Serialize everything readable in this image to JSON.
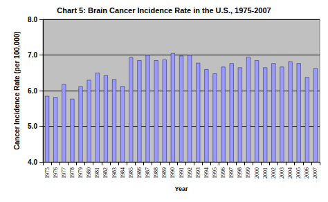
{
  "chart_data": {
    "type": "bar",
    "title": "Chart 5: Brain Cancer Incidence Rate in the U.S., 1975-2007",
    "x_label": "Year",
    "y_label": "Cancer Incidence Rate (per 100,000)",
    "categories": [
      "1975",
      "1976",
      "1977",
      "1978",
      "1979",
      "1980",
      "1981",
      "1982",
      "1983",
      "1984",
      "1985",
      "1986",
      "1987",
      "1988",
      "1989",
      "1990",
      "1991",
      "1992",
      "1993",
      "1994",
      "1995",
      "1996",
      "1997",
      "1998",
      "1999",
      "2000",
      "2001",
      "2002",
      "2003",
      "2004",
      "2005",
      "2006",
      "2007"
    ],
    "values": [
      5.85,
      5.82,
      6.18,
      5.77,
      6.12,
      6.3,
      6.5,
      6.43,
      6.32,
      6.13,
      6.93,
      6.85,
      7.0,
      6.85,
      6.87,
      7.05,
      6.98,
      7.0,
      6.78,
      6.6,
      6.48,
      6.67,
      6.77,
      6.65,
      6.95,
      6.85,
      6.65,
      6.77,
      6.67,
      6.82,
      6.77,
      6.38,
      6.63
    ],
    "color": "#9999ff",
    "ylim": [
      4,
      8
    ],
    "yticks": [
      {
        "value": 4,
        "label": "4.0"
      },
      {
        "value": 5,
        "label": "5.0"
      },
      {
        "value": 6,
        "label": "6.0"
      },
      {
        "value": 7,
        "label": "7.0"
      },
      {
        "value": 8,
        "label": "8.0"
      }
    ],
    "grid": true
  }
}
